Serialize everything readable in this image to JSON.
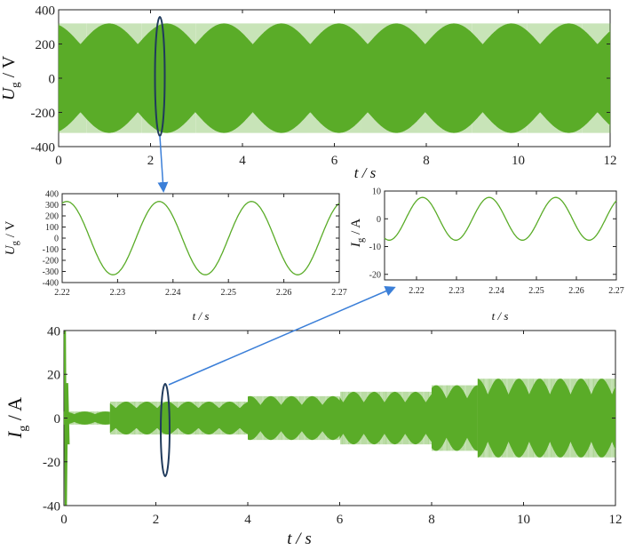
{
  "colors": {
    "signal": "#5aac28",
    "frame": "#222222",
    "callout_ellipse": "#1f3a5c",
    "callout_arrow": "#3b7fd8"
  },
  "chart_data": [
    {
      "id": "top",
      "type": "line",
      "ylabel": "U",
      "ylabel_sub": "g",
      "ylabel_unit": " / V",
      "xlabel": "t / s",
      "xlim": [
        0,
        12
      ],
      "ylim": [
        -400,
        400
      ],
      "xticks": [
        "0",
        "2",
        "4",
        "6",
        "8",
        "10",
        "12"
      ],
      "yticks": [
        "400",
        "200",
        "0",
        "-200",
        "-400"
      ],
      "series": [
        {
          "amplitude": 320,
          "frequency_hz": 60
        }
      ]
    },
    {
      "id": "zoom-voltage",
      "type": "line",
      "ylabel": "U",
      "ylabel_sub": "g",
      "ylabel_unit": " / V",
      "xlabel": "t / s",
      "xlim": [
        2.22,
        2.27
      ],
      "ylim": [
        -400,
        400
      ],
      "xticks": [
        "2.22",
        "2.23",
        "2.24",
        "2.25",
        "2.26",
        "2.27"
      ],
      "yticks": [
        "400",
        "300",
        "200",
        "100",
        "0",
        "-100",
        "-200",
        "-300",
        "-400"
      ],
      "series": [
        {
          "amplitude": 330,
          "frequency_hz": 60,
          "peak_at": 2.2375
        }
      ]
    },
    {
      "id": "zoom-current",
      "type": "line",
      "ylabel": "I",
      "ylabel_sub": "g",
      "ylabel_unit": " / A",
      "xlabel": "t / s",
      "xlim": [
        2.212,
        2.27
      ],
      "ylim": [
        -22,
        10
      ],
      "xticks": [
        "2.22",
        "2.23",
        "2.24",
        "2.25",
        "2.26",
        "2.27"
      ],
      "yticks": [
        "10",
        "0",
        "-10",
        "-20"
      ],
      "series": [
        {
          "amplitude": 7.7,
          "frequency_hz": 60,
          "peak_at": 2.2215
        }
      ]
    },
    {
      "id": "bottom",
      "type": "line",
      "ylabel": "I",
      "ylabel_sub": "g",
      "ylabel_unit": " / A",
      "xlabel": "t / s",
      "xlim": [
        0,
        12
      ],
      "ylim": [
        -40,
        40
      ],
      "xticks": [
        "0",
        "2",
        "4",
        "6",
        "8",
        "10",
        "12"
      ],
      "yticks": [
        "40",
        "20",
        "0",
        "-20",
        "-40"
      ],
      "series": [
        {
          "segments": [
            {
              "t0": 0.0,
              "t1": 1.0,
              "amplitude": 3
            },
            {
              "t0": 1.0,
              "t1": 4.0,
              "amplitude": 7.5
            },
            {
              "t0": 4.0,
              "t1": 6.0,
              "amplitude": 10
            },
            {
              "t0": 6.0,
              "t1": 8.0,
              "amplitude": 12
            },
            {
              "t0": 8.0,
              "t1": 9.0,
              "amplitude": 15
            },
            {
              "t0": 9.0,
              "t1": 12.0,
              "amplitude": 18
            }
          ],
          "startup_spike": 40
        }
      ]
    }
  ]
}
